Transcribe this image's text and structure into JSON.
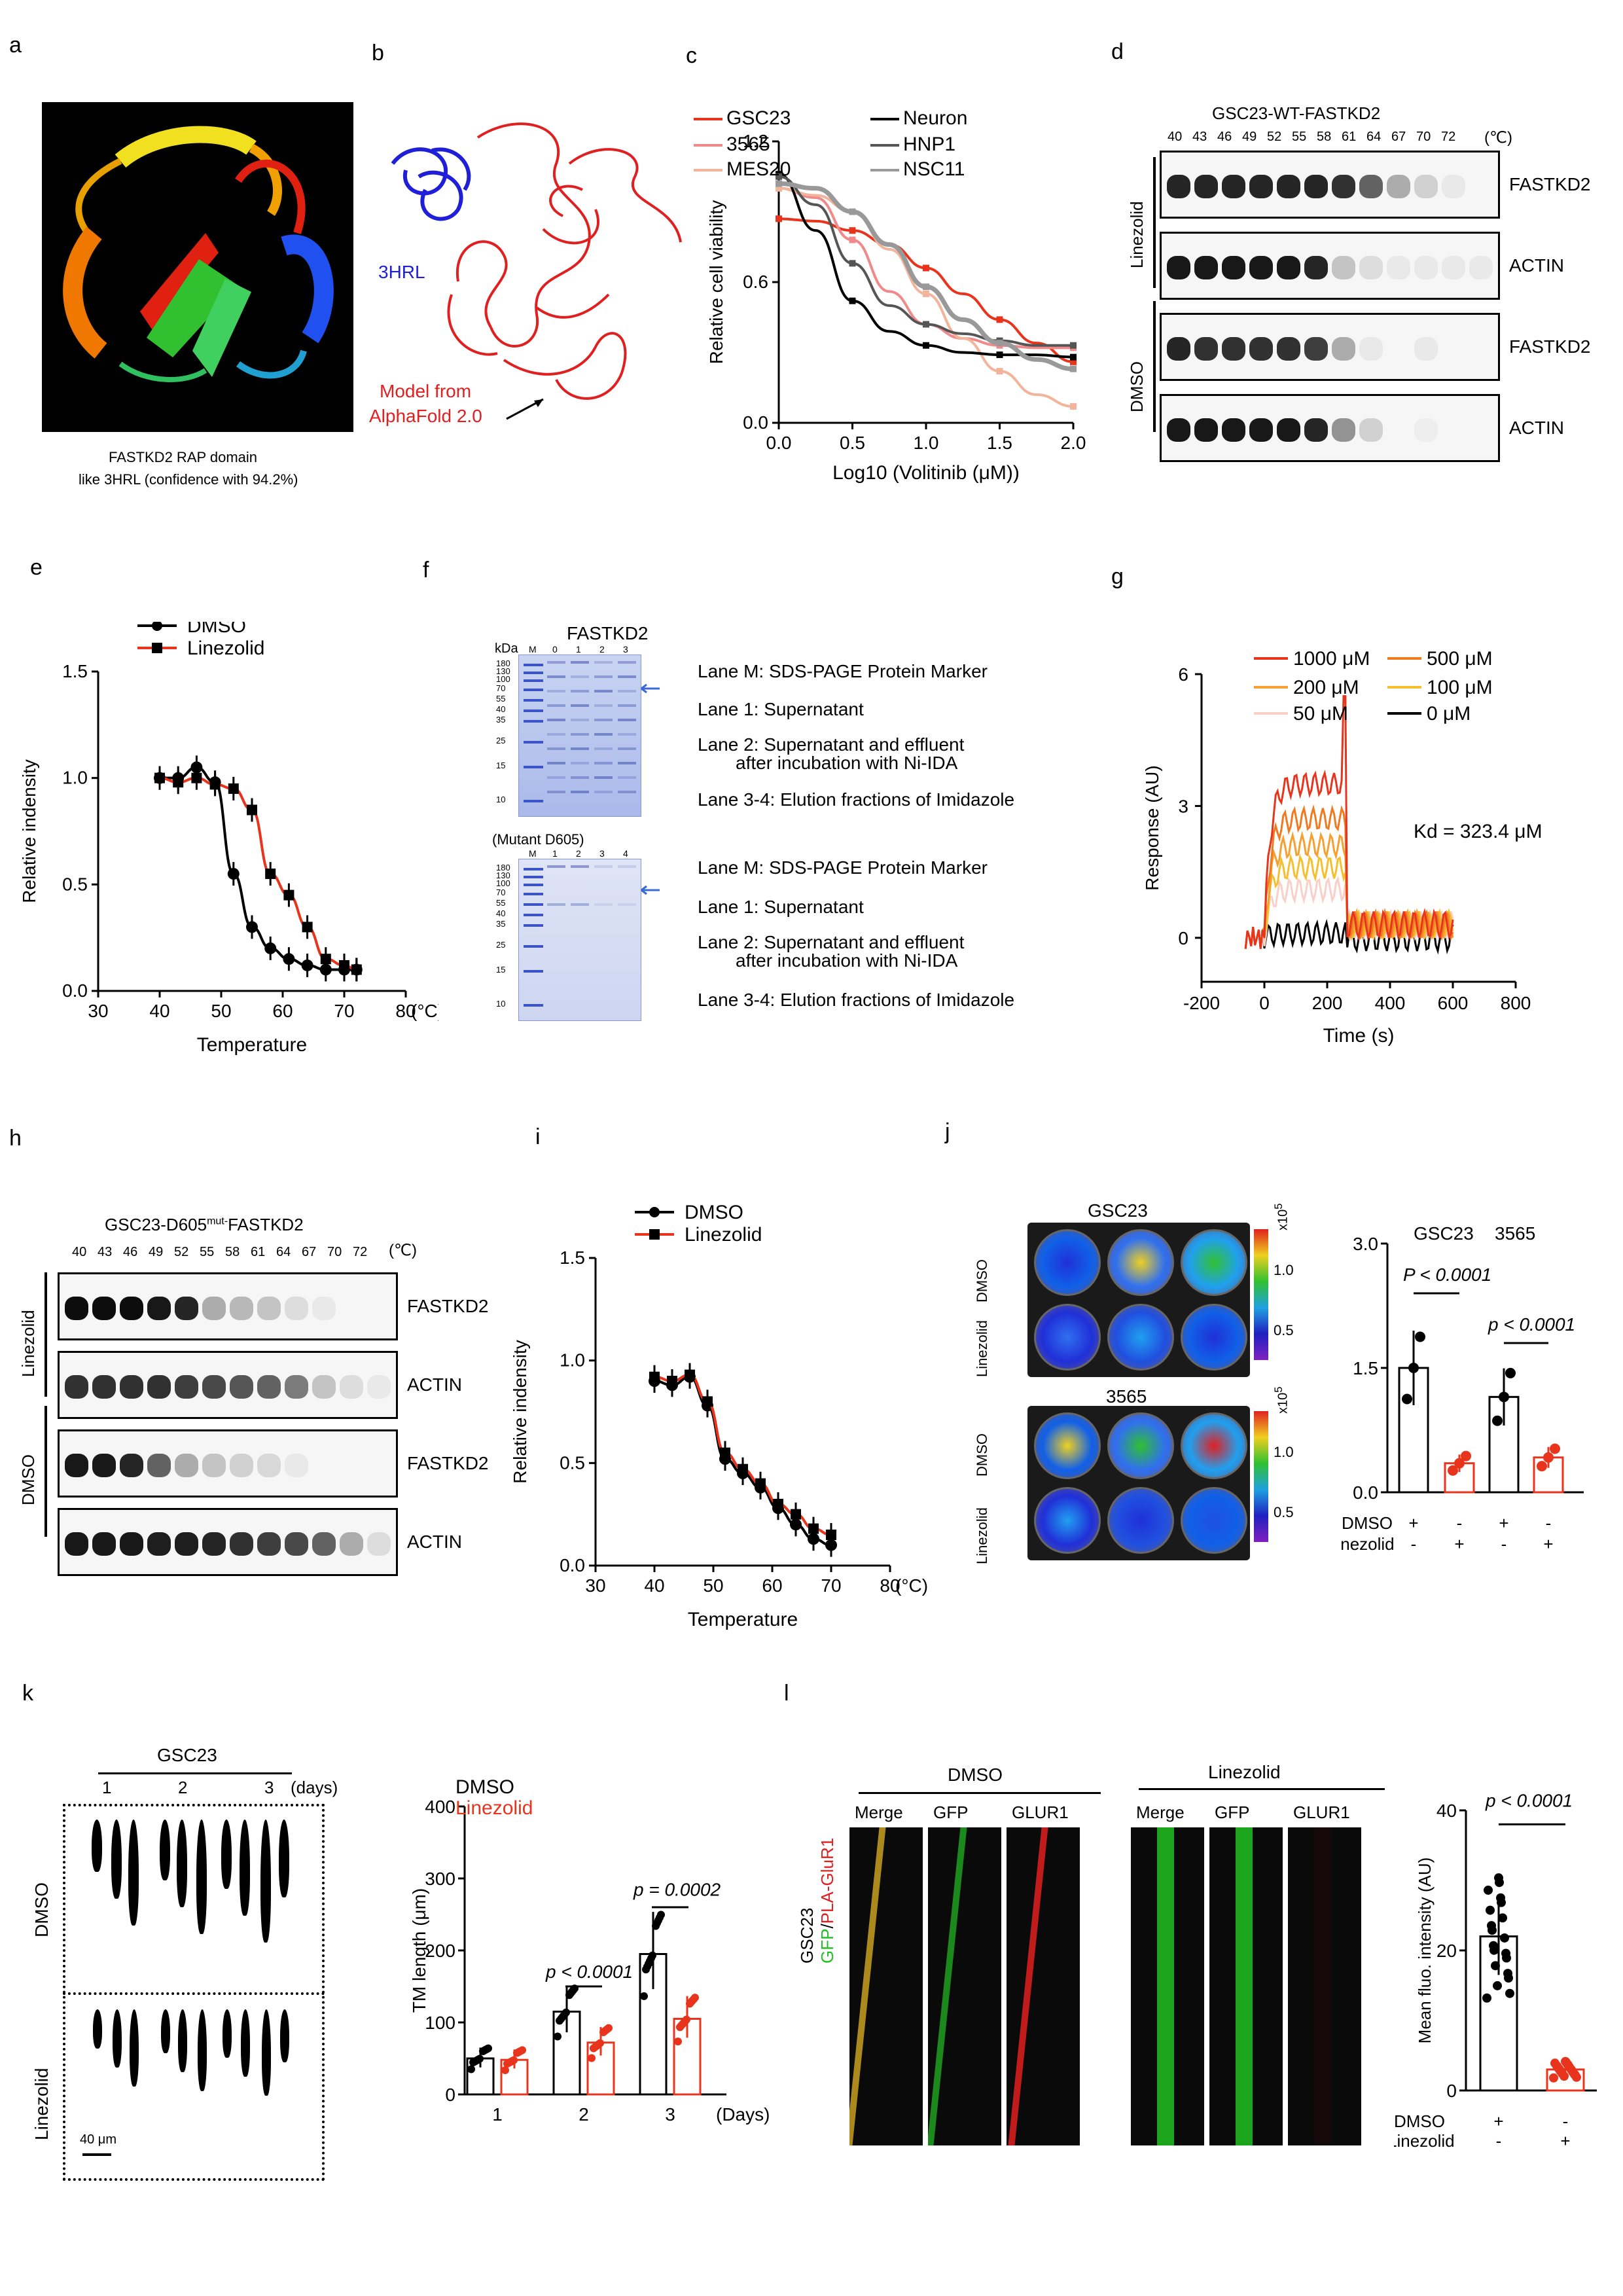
{
  "panels": {
    "a": {
      "label": "a",
      "caption_line1": "FASTKD2 RAP domain",
      "caption_line2": "like 3HRL (confidence with 94.2%)"
    },
    "b": {
      "label": "b",
      "structure_label": "3HRL",
      "model_label_line1": "Model from",
      "model_label_line2": "AlphaFold 2.0"
    },
    "c": {
      "label": "c",
      "legend": [
        "GSC23",
        "3565",
        "MES20",
        "Neuron",
        "HNP1",
        "NSC11"
      ]
    },
    "d": {
      "label": "d",
      "title": "GSC23-WT-FASTKD2",
      "temps": [
        "40",
        "43",
        "46",
        "49",
        "52",
        "55",
        "58",
        "61",
        "64",
        "67",
        "70",
        "72"
      ],
      "temp_unit": "(℃)",
      "group1": "Linezolid",
      "group2": "DMSO",
      "rows": [
        "FASTKD2",
        "ACTIN",
        "FASTKD2",
        "ACTIN"
      ]
    },
    "e": {
      "label": "e"
    },
    "f": {
      "label": "f",
      "gel1_title": "FASTKD2",
      "gel2_title": "(Mutant D605)",
      "kda": "kDa",
      "lane_header": [
        "M",
        "0",
        "1",
        "2",
        "3"
      ],
      "lane_header2": [
        "M",
        "1",
        "2",
        "3",
        "4"
      ],
      "markers": [
        "180",
        "130",
        "100",
        "70",
        "55",
        "40",
        "35",
        "25",
        "15",
        "10"
      ],
      "desc": [
        "Lane M: SDS-PAGE Protein Marker",
        "Lane 1: Supernatant",
        "Lane 2: Supernatant and effluent",
        "after incubation with Ni-IDA",
        "Lane 3-4: Elution fractions of  Imidazole"
      ]
    },
    "g": {
      "label": "g",
      "legend": [
        "1000 μM",
        "100 μM",
        "500 μM",
        "50 μM",
        "200 μM",
        "0 μM"
      ],
      "kd": "Kd = 323.4 μM"
    },
    "h": {
      "label": "h",
      "title": "GSC23-D605",
      "title_sup": "mut-",
      "title_tail": "FASTKD2",
      "temps": [
        "40",
        "43",
        "46",
        "49",
        "52",
        "55",
        "58",
        "61",
        "64",
        "67",
        "70",
        "72"
      ],
      "temp_unit": "(℃)",
      "group1": "Linezolid",
      "group2": "DMSO",
      "rows": [
        "FASTKD2",
        "ACTIN",
        "FASTKD2",
        "ACTIN"
      ]
    },
    "i": {
      "label": "i"
    },
    "j": {
      "label": "j",
      "img1_title": "GSC23",
      "img2_title": "3565",
      "row_dmso": "DMSO",
      "row_lin": "Linezolid",
      "scale_unit": "x10",
      "scale_exp": "5",
      "scale_ticks": [
        "1.0",
        "0.5"
      ]
    },
    "k": {
      "label": "k",
      "group_title": "GSC23",
      "days": [
        "1",
        "2",
        "3"
      ],
      "days_unit": "(days)",
      "row_dmso": "DMSO",
      "row_lin": "Linezolid",
      "scalebar": "40 μm"
    },
    "l": {
      "label": "l",
      "dmso_title": "DMSO",
      "lin_title": "Linezolid",
      "channels": [
        "Merge",
        "GFP",
        "GLUR1"
      ],
      "side_label_a": "GSC23",
      "side_label_gfp": "GFP",
      "side_label_sep": "/",
      "side_label_pla": "PLA-GluR1"
    }
  },
  "chart_data": [
    {
      "id": "c",
      "type": "line",
      "title": "",
      "xlabel": "Log10 (Volitinib (μM))",
      "ylabel": "Relative cell viability",
      "xlim": [
        0,
        2
      ],
      "ylim": [
        0,
        1.2
      ],
      "xticks": [
        "0.0",
        "0.5",
        "1.0",
        "1.5",
        "2.0"
      ],
      "yticks": [
        "0.0",
        "0.6",
        "1.2"
      ],
      "x": [
        0,
        0.25,
        0.5,
        0.75,
        1.0,
        1.25,
        1.5,
        1.75,
        2.0
      ],
      "series": [
        {
          "name": "GSC23",
          "color": "#e8341c",
          "values": [
            0.87,
            0.86,
            0.82,
            0.76,
            0.66,
            0.55,
            0.44,
            0.34,
            0.26
          ]
        },
        {
          "name": "3565",
          "color": "#f08a8a",
          "values": [
            1.0,
            0.96,
            0.78,
            0.56,
            0.42,
            0.36,
            0.33,
            0.32,
            0.32
          ]
        },
        {
          "name": "MES20",
          "color": "#f2b49a",
          "values": [
            1.0,
            0.97,
            0.9,
            0.74,
            0.55,
            0.36,
            0.22,
            0.12,
            0.07
          ]
        },
        {
          "name": "Neuron",
          "color": "#000000",
          "values": [
            1.06,
            0.82,
            0.52,
            0.39,
            0.33,
            0.3,
            0.29,
            0.29,
            0.28
          ]
        },
        {
          "name": "HNP1",
          "color": "#555555",
          "values": [
            1.05,
            0.93,
            0.68,
            0.5,
            0.42,
            0.38,
            0.35,
            0.33,
            0.33
          ]
        },
        {
          "name": "NSC11",
          "color": "#999999",
          "values": [
            1.02,
            1.0,
            0.9,
            0.76,
            0.58,
            0.44,
            0.34,
            0.27,
            0.23
          ]
        }
      ]
    },
    {
      "id": "e",
      "type": "line",
      "title": "",
      "xlabel": "Temperature",
      "ylabel": "Relative indensity",
      "x_unit": "(°C)",
      "xlim": [
        30,
        80
      ],
      "ylim": [
        0,
        1.5
      ],
      "xticks": [
        "30",
        "40",
        "50",
        "60",
        "70",
        "80"
      ],
      "yticks": [
        "0.0",
        "0.5",
        "1.0",
        "1.5"
      ],
      "x": [
        40,
        43,
        46,
        49,
        52,
        55,
        58,
        61,
        64,
        67,
        70,
        72
      ],
      "series": [
        {
          "name": "DMSO",
          "color": "#000000",
          "values": [
            1.0,
            1.0,
            1.05,
            0.98,
            0.55,
            0.3,
            0.2,
            0.15,
            0.12,
            0.1,
            0.1,
            0.1
          ]
        },
        {
          "name": "Linezolid",
          "color": "#e8341c",
          "values": [
            1.0,
            0.98,
            1.0,
            0.97,
            0.95,
            0.85,
            0.55,
            0.45,
            0.3,
            0.15,
            0.12,
            0.1
          ]
        }
      ]
    },
    {
      "id": "g",
      "type": "line",
      "title": "",
      "xlabel": "Time (s)",
      "ylabel": "Response (AU)",
      "xlim": [
        -200,
        800
      ],
      "ylim": [
        -1,
        6
      ],
      "xticks": [
        "-200",
        "0",
        "200",
        "400",
        "600",
        "800"
      ],
      "yticks": [
        "0",
        "3",
        "6"
      ],
      "series": [
        {
          "name": "1000 μM",
          "color": "#e8341c",
          "plateau": 3.5
        },
        {
          "name": "500 μM",
          "color": "#f07a20",
          "plateau": 2.7
        },
        {
          "name": "200 μM",
          "color": "#f5a030",
          "plateau": 2.1
        },
        {
          "name": "100 μM",
          "color": "#f5c030",
          "plateau": 1.6
        },
        {
          "name": "50 μM",
          "color": "#f8d0c8",
          "plateau": 1.1
        },
        {
          "name": "0 μM",
          "color": "#000000",
          "plateau": 0.1
        }
      ]
    },
    {
      "id": "i",
      "type": "line",
      "title": "",
      "xlabel": "Temperature",
      "ylabel": "Relative indensity",
      "x_unit": "(°C)",
      "xlim": [
        30,
        80
      ],
      "ylim": [
        0,
        1.5
      ],
      "xticks": [
        "30",
        "40",
        "50",
        "60",
        "70",
        "80"
      ],
      "yticks": [
        "0.0",
        "0.5",
        "1.0",
        "1.5"
      ],
      "x": [
        40,
        43,
        46,
        49,
        52,
        55,
        58,
        61,
        64,
        67,
        70
      ],
      "series": [
        {
          "name": "DMSO",
          "color": "#000000",
          "values": [
            0.9,
            0.88,
            0.92,
            0.78,
            0.52,
            0.45,
            0.38,
            0.28,
            0.2,
            0.13,
            0.1
          ]
        },
        {
          "name": "Linezolid",
          "color": "#e8341c",
          "values": [
            0.92,
            0.9,
            0.93,
            0.8,
            0.55,
            0.47,
            0.4,
            0.3,
            0.25,
            0.18,
            0.15
          ]
        }
      ]
    },
    {
      "id": "j",
      "type": "bar",
      "title": "",
      "group_labels": [
        "GSC23",
        "3565"
      ],
      "ylim": [
        0,
        3.0
      ],
      "yticks": [
        "0.0",
        "1.5",
        "3.0"
      ],
      "categories": [
        "DMSO+",
        "Linezolid+",
        "DMSO+",
        "Linezolid+"
      ],
      "values": [
        1.5,
        0.35,
        1.15,
        0.42
      ],
      "colors": [
        "#000000",
        "#e8341c",
        "#000000",
        "#e8341c"
      ],
      "row1_label": "DMSO",
      "row1": [
        "+",
        "-",
        "+",
        "-"
      ],
      "row2_label": "Linezolid",
      "row2": [
        "-",
        "+",
        "-",
        "+"
      ],
      "annotations": [
        "P < 0.0001",
        "p < 0.0001"
      ]
    },
    {
      "id": "k",
      "type": "bar",
      "title": "",
      "xlabel": "(Days)",
      "ylabel": "TM length  (μm)",
      "ylim": [
        0,
        400
      ],
      "yticks": [
        "0",
        "100",
        "200",
        "300",
        "400"
      ],
      "categories": [
        "1",
        "2",
        "3"
      ],
      "legend": [
        "DMSO",
        "Linezolid"
      ],
      "series": [
        {
          "name": "DMSO",
          "color": "#000000",
          "values": [
            50,
            115,
            195
          ]
        },
        {
          "name": "Linezolid",
          "color": "#e8341c",
          "values": [
            48,
            72,
            105
          ]
        }
      ],
      "annotations": [
        "p < 0.0001",
        "p = 0.0002"
      ]
    },
    {
      "id": "l",
      "type": "bar",
      "title": "",
      "ylabel": "Mean fluo. intensity (AU)",
      "ylim": [
        0,
        40
      ],
      "yticks": [
        "0",
        "20",
        "40"
      ],
      "categories": [
        "DMSO+",
        "Linezolid+"
      ],
      "values": [
        22,
        3
      ],
      "colors": [
        "#000000",
        "#e8341c"
      ],
      "row1_label": "DMSO",
      "row1": [
        "+",
        "-"
      ],
      "row2_label": "Linezolid",
      "row2": [
        "-",
        "+"
      ],
      "annotations": [
        "p < 0.0001"
      ]
    }
  ]
}
